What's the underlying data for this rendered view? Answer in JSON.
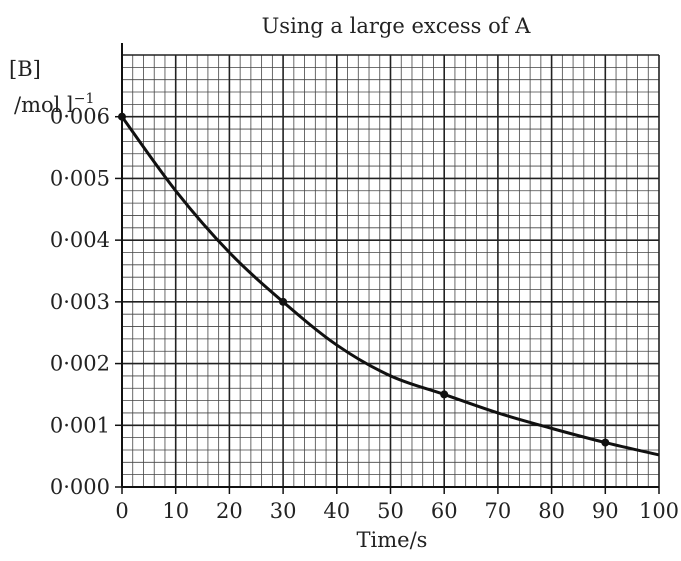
{
  "chart_data": {
    "type": "line",
    "title": "Using a large excess of A",
    "ylabel_line1": "[B]",
    "ylabel_line2_main": "/mol l",
    "ylabel_line2_sup": "−1",
    "xlabel": "Time/s",
    "xlim": [
      0,
      100
    ],
    "ylim": [
      0,
      0.007
    ],
    "x_ticks": [
      0,
      10,
      20,
      30,
      40,
      50,
      60,
      70,
      80,
      90,
      100
    ],
    "x_tick_labels": [
      "0",
      "10",
      "20",
      "30",
      "40",
      "50",
      "60",
      "70",
      "80",
      "90",
      "100"
    ],
    "y_ticks": [
      0,
      0.001,
      0.002,
      0.003,
      0.004,
      0.005,
      0.006
    ],
    "y_tick_labels": [
      "0·000",
      "0·001",
      "0·002",
      "0·003",
      "0·004",
      "0·005",
      "0·006"
    ],
    "grid": true,
    "points": {
      "x": [
        0,
        30,
        60,
        90
      ],
      "y": [
        0.006,
        0.003,
        0.0015,
        0.00072
      ]
    },
    "curve": {
      "x": [
        0,
        10,
        20,
        30,
        40,
        50,
        60,
        70,
        80,
        90,
        100
      ],
      "y": [
        0.006,
        0.0048,
        0.0038,
        0.003,
        0.0023,
        0.0018,
        0.0015,
        0.0012,
        0.00095,
        0.00072,
        0.00052
      ]
    }
  }
}
